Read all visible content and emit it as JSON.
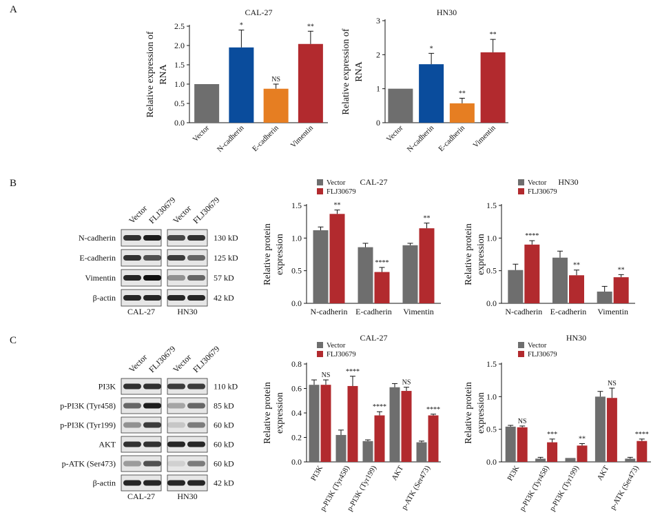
{
  "panels": {
    "A": "A",
    "B": "B",
    "C": "C"
  },
  "colors": {
    "vector": "#6e6e6e",
    "ncad": "#0a4c9c",
    "ecad": "#e67e22",
    "vim": "#b22a2e",
    "flj": "#b22a2e"
  },
  "blots": {
    "B": {
      "lanes": [
        "Vector",
        "FLJ30679",
        "Vector",
        "FLJ30679"
      ],
      "proteins": [
        "N-cadherin",
        "E-cadherin",
        "Vimentin",
        "β-actin"
      ],
      "sizes": [
        "130 kD",
        "125 kD",
        "57 kD",
        "42 kD"
      ],
      "cells": [
        "CAL-27",
        "HN30"
      ]
    },
    "C": {
      "lanes": [
        "Vector",
        "FLJ30679",
        "Vector",
        "FLJ30679"
      ],
      "proteins": [
        "PI3K",
        "p-PI3K (Tyr458)",
        "p-PI3K (Tyr199)",
        "AKT",
        "p-ATK (Ser473)",
        "β-actin"
      ],
      "sizes": [
        "110 kD",
        "85 kD",
        "60 kD",
        "60 kD",
        "60 kD",
        "42 kD"
      ],
      "cells": [
        "CAL-27",
        "HN30"
      ]
    }
  },
  "chart_data": [
    {
      "id": "A1",
      "type": "bar",
      "title": "CAL-27",
      "ylabel": [
        "Relative expression of",
        "RNA"
      ],
      "categories": [
        "Vector",
        "N-cadherin",
        "E-cadherin",
        "Vimentin"
      ],
      "values": [
        1.0,
        1.95,
        0.88,
        2.04
      ],
      "errors": [
        0,
        0.45,
        0.12,
        0.33
      ],
      "sig": [
        "",
        "*",
        "NS",
        "**"
      ],
      "bar_colors": [
        "#6e6e6e",
        "#0a4c9c",
        "#e67e22",
        "#b22a2e"
      ],
      "ylim": [
        0,
        2.5
      ],
      "yticks": [
        "0.0",
        "0.5",
        "1.0",
        "1.5",
        "2.0",
        "2.5"
      ]
    },
    {
      "id": "A2",
      "type": "bar",
      "title": "HN30",
      "ylabel": [
        "Relative expression of",
        "RNA"
      ],
      "categories": [
        "Vector",
        "N-cadherin",
        "E-cadherin",
        "Vimentin"
      ],
      "values": [
        1.0,
        1.72,
        0.57,
        2.07
      ],
      "errors": [
        0,
        0.32,
        0.15,
        0.38
      ],
      "sig": [
        "",
        "*",
        "**",
        "**"
      ],
      "bar_colors": [
        "#6e6e6e",
        "#0a4c9c",
        "#e67e22",
        "#b22a2e"
      ],
      "ylim": [
        0,
        3
      ],
      "yticks": [
        "0",
        "1",
        "2",
        "3"
      ]
    },
    {
      "id": "B1",
      "type": "bar",
      "title": "CAL-27",
      "ylabel": [
        "Relative protein",
        "expression"
      ],
      "categories": [
        "N-cadherin",
        "E-cadherin",
        "Vimentin"
      ],
      "legend": [
        "Vector",
        "FLJ30679"
      ],
      "series": [
        {
          "name": "Vector",
          "values": [
            1.12,
            0.86,
            0.89
          ],
          "errors": [
            0.05,
            0.06,
            0.03
          ]
        },
        {
          "name": "FLJ30679",
          "values": [
            1.37,
            0.48,
            1.15
          ],
          "errors": [
            0.06,
            0.07,
            0.08
          ]
        }
      ],
      "sig": [
        "**",
        "****",
        "**"
      ],
      "ylim": [
        0,
        1.5
      ],
      "yticks": [
        "0.0",
        "0.5",
        "1.0",
        "1.5"
      ]
    },
    {
      "id": "B2",
      "type": "bar",
      "title": "HN30",
      "ylabel": [
        "Relative protein",
        "expression"
      ],
      "categories": [
        "N-cadherin",
        "E-cadherin",
        "Vimentin"
      ],
      "legend": [
        "Vector",
        "FLJ30679"
      ],
      "series": [
        {
          "name": "Vector",
          "values": [
            0.51,
            0.7,
            0.18
          ],
          "errors": [
            0.09,
            0.1,
            0.08
          ]
        },
        {
          "name": "FLJ30679",
          "values": [
            0.9,
            0.43,
            0.4
          ],
          "errors": [
            0.06,
            0.08,
            0.04
          ]
        }
      ],
      "sig": [
        "****",
        "**",
        "**"
      ],
      "ylim": [
        0,
        1.5
      ],
      "yticks": [
        "0.0",
        "0.5",
        "1.0",
        "1.5"
      ]
    },
    {
      "id": "C1",
      "type": "bar",
      "title": "CAL-27",
      "ylabel": [
        "Relative protein",
        "expression"
      ],
      "categories": [
        "PI3K",
        "p-PI3K (Tyr458)",
        "p-PI3K (Tyr199)",
        "AKT",
        "p-ATK (Ser473)"
      ],
      "legend": [
        "Vector",
        "FLJ30679"
      ],
      "series": [
        {
          "name": "Vector",
          "values": [
            0.63,
            0.22,
            0.17,
            0.61,
            0.16
          ],
          "errors": [
            0.04,
            0.04,
            0.01,
            0.03,
            0.01
          ]
        },
        {
          "name": "FLJ30679",
          "values": [
            0.63,
            0.62,
            0.38,
            0.58,
            0.38
          ],
          "errors": [
            0.04,
            0.08,
            0.03,
            0.03,
            0.01
          ]
        }
      ],
      "sig": [
        "NS",
        "****",
        "****",
        "NS",
        "****"
      ],
      "ylim": [
        0,
        0.8
      ],
      "yticks": [
        "0.0",
        "0.2",
        "0.4",
        "0.6",
        "0.8"
      ]
    },
    {
      "id": "C2",
      "type": "bar",
      "title": "HN30",
      "ylabel": [
        "Relative protein",
        "expression"
      ],
      "categories": [
        "PI3K",
        "p-PI3K (Tyr458)",
        "p-PI3K (Tyr199)",
        "AKT",
        "p-ATK (Ser473)"
      ],
      "legend": [
        "Vector",
        "FLJ30679"
      ],
      "series": [
        {
          "name": "Vector",
          "values": [
            0.54,
            0.05,
            0.06,
            1.0,
            0.05
          ],
          "errors": [
            0.02,
            0.02,
            0.0,
            0.08,
            0.02
          ]
        },
        {
          "name": "FLJ30679",
          "values": [
            0.53,
            0.3,
            0.25,
            0.98,
            0.32
          ],
          "errors": [
            0.02,
            0.05,
            0.03,
            0.15,
            0.03
          ]
        }
      ],
      "sig": [
        "NS",
        "***",
        "**",
        "NS",
        "****"
      ],
      "ylim": [
        0,
        1.5
      ],
      "yticks": [
        "0.0",
        "0.5",
        "1.0",
        "1.5"
      ]
    }
  ]
}
